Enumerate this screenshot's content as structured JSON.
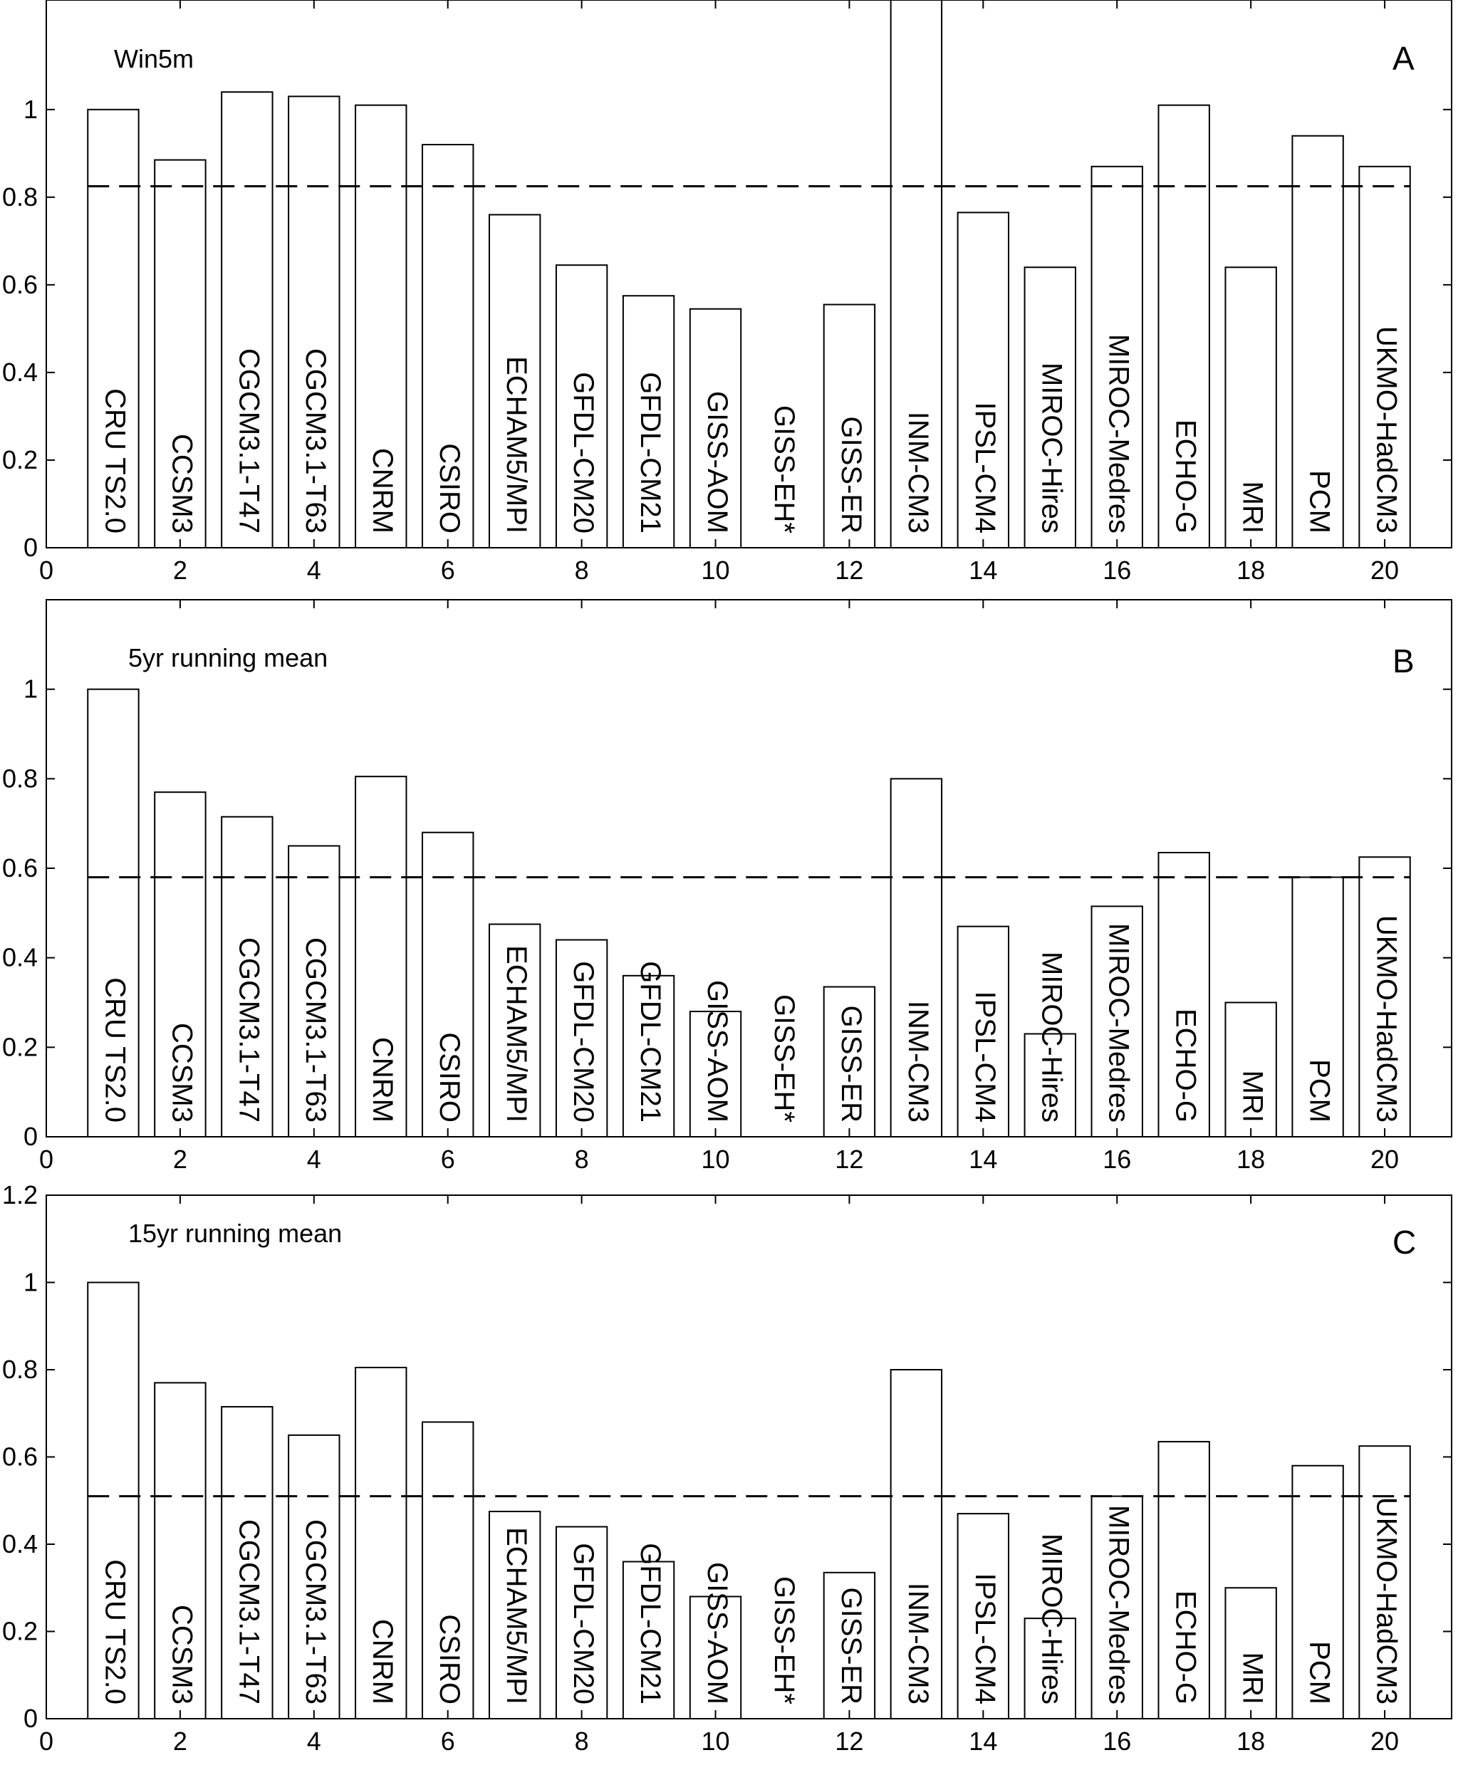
{
  "chart_data": [
    {
      "type": "bar",
      "title": "Win5m",
      "panel_letter": "A",
      "x": [
        1,
        2,
        3,
        4,
        5,
        6,
        7,
        8,
        9,
        10,
        11,
        12,
        13,
        14,
        15,
        16,
        17,
        18,
        19,
        20
      ],
      "categories": [
        "CRU TS2.0",
        "CCSM3",
        "CGCM3.1-T47",
        "CGCM3.1-T63",
        "CNRM",
        "CSIRO",
        "ECHAM5/MPI",
        "GFDL-CM20",
        "GFDL-CM21",
        "GISS-AOM",
        "GISS-EH*",
        "GISS-ER",
        "INM-CM3",
        "IPSL-CM4",
        "MIROC-Hires",
        "MIROC-Medres",
        "ECHO-G",
        "MRI",
        "PCM",
        "UKMO-HadCM3"
      ],
      "values": [
        1.0,
        0.885,
        1.04,
        1.03,
        1.01,
        0.92,
        0.76,
        0.645,
        0.575,
        0.545,
        null,
        0.555,
        1.25,
        0.765,
        0.64,
        0.87,
        1.01,
        0.64,
        0.94,
        0.87
      ],
      "reference_line": 0.825,
      "xlim": [
        0,
        21
      ],
      "ylim": [
        0,
        1.25
      ],
      "xticks": [
        "0",
        "2",
        "4",
        "6",
        "8",
        "10",
        "12",
        "14",
        "16",
        "18",
        "20"
      ],
      "yticks": [
        "0",
        "0.2",
        "0.4",
        "0.6",
        "0.8",
        "1"
      ],
      "legend": "none",
      "grid": false
    },
    {
      "type": "bar",
      "title": "5yr running mean",
      "panel_letter": "B",
      "x": [
        1,
        2,
        3,
        4,
        5,
        6,
        7,
        8,
        9,
        10,
        11,
        12,
        13,
        14,
        15,
        16,
        17,
        18,
        19,
        20
      ],
      "categories": [
        "CRU TS2.0",
        "CCSM3",
        "CGCM3.1-T47",
        "CGCM3.1-T63",
        "CNRM",
        "CSIRO",
        "ECHAM5/MPI",
        "GFDL-CM20",
        "GFDL-CM21",
        "GISS-AOM",
        "GISS-EH*",
        "GISS-ER",
        "INM-CM3",
        "IPSL-CM4",
        "MIROC-Hires",
        "MIROC-Medres",
        "ECHO-G",
        "MRI",
        "PCM",
        "UKMO-HadCM3"
      ],
      "values": [
        1.0,
        0.77,
        0.715,
        0.65,
        0.805,
        0.68,
        0.475,
        0.44,
        0.36,
        0.28,
        null,
        0.335,
        0.8,
        0.47,
        0.23,
        0.515,
        0.635,
        0.3,
        0.58,
        0.625
      ],
      "reference_line": 0.58,
      "xlim": [
        0,
        21
      ],
      "ylim": [
        0,
        1.2
      ],
      "xticks": [
        "0",
        "2",
        "4",
        "6",
        "8",
        "10",
        "12",
        "14",
        "16",
        "18",
        "20"
      ],
      "yticks": [
        "0",
        "0.2",
        "0.4",
        "0.6",
        "0.8",
        "1"
      ],
      "legend": "none",
      "grid": false
    },
    {
      "type": "bar",
      "title": "15yr running mean",
      "panel_letter": "C",
      "x": [
        1,
        2,
        3,
        4,
        5,
        6,
        7,
        8,
        9,
        10,
        11,
        12,
        13,
        14,
        15,
        16,
        17,
        18,
        19,
        20
      ],
      "categories": [
        "CRU TS2.0",
        "CCSM3",
        "CGCM3.1-T47",
        "CGCM3.1-T63",
        "CNRM",
        "CSIRO",
        "ECHAM5/MPI",
        "GFDL-CM20",
        "GFDL-CM21",
        "GISS-AOM",
        "GISS-EH*",
        "GISS-ER",
        "INM-CM3",
        "IPSL-CM4",
        "MIROC-Hires",
        "MIROC-Medres",
        "ECHO-G",
        "MRI",
        "PCM",
        "UKMO-HadCM3"
      ],
      "values": [
        1.0,
        0.77,
        0.715,
        0.65,
        0.805,
        0.68,
        0.475,
        0.44,
        0.36,
        0.28,
        null,
        0.335,
        0.8,
        0.47,
        0.23,
        0.51,
        0.635,
        0.3,
        0.58,
        0.625
      ],
      "reference_line": 0.51,
      "xlim": [
        0,
        21
      ],
      "ylim": [
        0,
        1.2
      ],
      "xticks": [
        "0",
        "2",
        "4",
        "6",
        "8",
        "10",
        "12",
        "14",
        "16",
        "18",
        "20"
      ],
      "yticks": [
        "0",
        "0.2",
        "0.4",
        "0.6",
        "0.8",
        "1",
        "1.2"
      ],
      "legend": "none",
      "grid": false
    }
  ]
}
